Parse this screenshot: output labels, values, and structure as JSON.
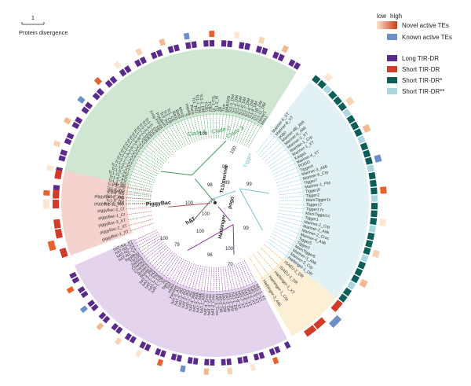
{
  "scale_bar": {
    "value": "1",
    "label": "Protein divergence"
  },
  "legend": {
    "gradient": {
      "low_label": "low",
      "high_label": "high",
      "low_color": "#fde2cf",
      "high_color": "#d23a14"
    },
    "items": [
      {
        "label": "Novel active TEs",
        "color": "#e8602a"
      },
      {
        "label": "Known active TEs",
        "color": "#6b8fca"
      },
      {
        "label": "Long TIR-DR",
        "color": "#5a2a8c"
      },
      {
        "label": "Short TIR-DR",
        "color": "#d23a2a"
      },
      {
        "label": "Short TIR-DR*",
        "color": "#0d5e59"
      },
      {
        "label": "Short TIR-DR**",
        "color": "#a9d8e0"
      }
    ]
  },
  "clade_labels": [
    {
      "name": "Clade 1",
      "color": "#3f9a59"
    },
    {
      "name": "Clade 2",
      "color": "#3f9a59"
    },
    {
      "name": "Clade 3",
      "color": "#3f9a59"
    },
    {
      "name": "Tigger",
      "color": "#7fc4cf"
    },
    {
      "name": "Tc1/mariner",
      "color": "#222222"
    },
    {
      "name": "pogo",
      "color": "#222222"
    },
    {
      "name": "Harbinger",
      "color": "#222222"
    },
    {
      "name": "PiggyBac",
      "color": "#222222"
    },
    {
      "name": "hAT",
      "color": "#222222"
    }
  ],
  "bootstrap_labels": [
    "100",
    "100",
    "99",
    "99",
    "100",
    "98",
    "75",
    "100",
    "89",
    "100",
    "99",
    "100",
    "79",
    "96",
    "70",
    "100"
  ],
  "sectors": [
    {
      "key": "tc1_green",
      "color": "#cfe6d2",
      "line": "#3f9a59"
    },
    {
      "key": "tigger_teal",
      "color": "#e2f1f3",
      "line": "#7fc4cf"
    },
    {
      "key": "harbinger_gold",
      "color": "#fcefd6",
      "line": "#d9a02a"
    },
    {
      "key": "hat_purple",
      "color": "#e4d3ec",
      "line": "#8a3a9c"
    },
    {
      "key": "piggybac_pink",
      "color": "#f5d2cd",
      "line": "#c0504d"
    }
  ],
  "leaves": {
    "tc1_green": [
      "Tc1-12_AG",
      "Tc1-9_AG",
      "Tc1-7_AG",
      "Tc1-4_AG",
      "Tc1-8_AG",
      "Tc1-2_AG",
      "Tc1-1_AG",
      "Tc1-6_AG",
      "Tc1-11_AG",
      "Tc1-5_AG",
      "Tc1-10_XT",
      "Tc1-3_XT",
      "Tc1-1_XT",
      "Tc1-2_XT",
      "Tc1-4_XT",
      "Tc1-5_XT",
      "Tc1-6_XT",
      "Tc1-7_XT",
      "Tc1-8_XT",
      "Tc1-9_XT",
      "Tc1-1_DR",
      "Tc1-2_DR",
      "Tc1-3_DR",
      "Tc1-4_DR",
      "Tc1-5_DR",
      "SB",
      "Frog Prince",
      "Passport",
      "Tc3_AG",
      "Tc1_CB",
      "Tc1_CE",
      "Bari1",
      "Bari2",
      "Minos",
      "S",
      "Impala",
      "Paris",
      "Tc1_FR2",
      "Tc1-1_DM",
      "Tc1-2_DM",
      "TCB1",
      "TCB2",
      "Tc1-1_XI",
      "Tc1-2_XI",
      "ZB",
      "Ttcn",
      "MARISSt",
      "Tc1-3_DM",
      "Tc1-4_DM",
      "Tc1-5_DM",
      "Tc1-6_DM",
      "Tc1-7_DM",
      "Tc1-8_DM",
      "Tc1-9_DM",
      "Tc1-10_DM",
      "Tc1-11_DM",
      "Himar1",
      "Mos1"
    ],
    "tigger_teal": [
      "Mariner-5_XT",
      "Mariner-8_XT",
      "pogo",
      "Mariner-6B_AMi",
      "Mariner-6_AMi",
      "Mariner-2_XT",
      "Mariner-1_Crp",
      "Mariner-1_XT",
      "Kaiga1",
      "Mariner-4_XT",
      "POGO",
      "Tigger4",
      "Mariner-3_AMi",
      "Mariner-6_Crp",
      "Tigger7",
      "Mariner-1_PM",
      "Tigger2f",
      "Tigger2",
      "MarsTigger1c",
      "Tigger17",
      "Tigger17c",
      "MarsTigger1c",
      "Tigger1",
      "Mariner-1_Crp",
      "Mariner-2_AMi",
      "Mariner-2_Croc",
      "Mariner-4_AMi",
      "Tigger5",
      "Tigger3",
      "MarsTigger6",
      "Mariner-3_AMi",
      "Mariner-3_Crp",
      "Harbinger-1_DR"
    ],
    "harbinger_gold": [
      "ISAEU-2_DR",
      "ISAEU-1_DR",
      "Harbinger-1_XT",
      "Harbinger-1_Crp",
      "Harbinger-3_AMi"
    ],
    "hat_purple": [
      "hAT-1_XT",
      "hAT-2_XT",
      "hAT-3_XT",
      "hAT-4_XT",
      "hAT-5_XT",
      "hAT-6_XT",
      "hAT-7_XT",
      "hAT-8_XT",
      "hAT-1_DR",
      "hAT-2_DR",
      "hAT-3_DR",
      "hAT-4_DR",
      "hAT-5_DR",
      "hAT-1_Croc",
      "hAT-2_Croc",
      "hAT-3_Croc",
      "hAT-4_Croc",
      "hAT-1_AMi",
      "hAT-2_AMi",
      "hAT-3_AMi",
      "hAT-4_AMi",
      "hAT-1_AG",
      "hAT-2_AG",
      "hAT-3_AG",
      "hAT-4_AG",
      "hAT-5_AG",
      "Hermes",
      "Hobo",
      "Tol2",
      "Tam3",
      "Ac",
      "hAT-1_CB",
      "hAT-2_CB",
      "hAT-1_PM",
      "hAT-2_PM",
      "hAT-3_PM",
      "Buster1",
      "Buster2",
      "Charlie1",
      "Charlie2",
      "Zaphod",
      "Tip100",
      "Restless",
      "hAT-N1_XT",
      "hAT-N2_XT",
      "hAT-N3_XT",
      "hAT-N4_XT"
    ],
    "piggybac_pink": [
      "piggyBac-1_XT",
      "piggyBac-2_XT",
      "piggyBac-3_XT",
      "piggyBac-1_Cf",
      "piggyBac-2_Cf",
      "piggyBac-1_AMi",
      "piggyBac-2_AMi",
      "piggyBac",
      "PB_Tn"
    ]
  }
}
